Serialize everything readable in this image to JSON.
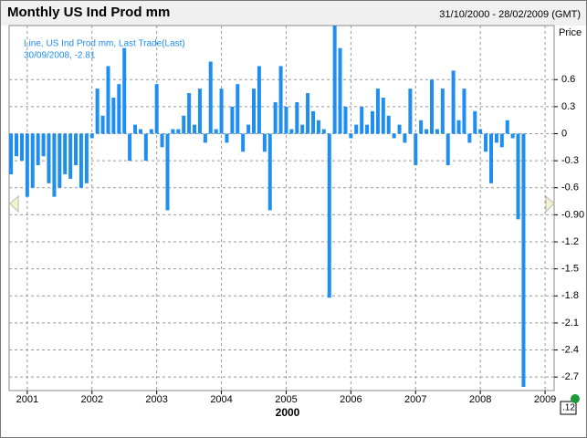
{
  "chart_data": {
    "type": "bar",
    "title": "Monthly US Ind Prod mm",
    "subtitle": "31/10/2000 - 28/02/2009 (GMT)",
    "y_axis_label": "Price",
    "x_axis_label": "2000",
    "legend_text": "Line, US Ind Prod mm, Last Trade(Last)",
    "annotation": "30/09/2008, -2.81",
    "price_tag": ".12",
    "series": [
      {
        "name": "US Ind Prod mm",
        "color": "#1f8ef1",
        "x": [
          2000.75,
          2000.833,
          2000.917,
          2001,
          2001.083,
          2001.167,
          2001.25,
          2001.333,
          2001.417,
          2001.5,
          2001.583,
          2001.667,
          2001.75,
          2001.833,
          2001.917,
          2002,
          2002.083,
          2002.167,
          2002.25,
          2002.333,
          2002.417,
          2002.5,
          2002.583,
          2002.667,
          2002.75,
          2002.833,
          2002.917,
          2003,
          2003.083,
          2003.167,
          2003.25,
          2003.333,
          2003.417,
          2003.5,
          2003.583,
          2003.667,
          2003.75,
          2003.833,
          2003.917,
          2004,
          2004.083,
          2004.167,
          2004.25,
          2004.333,
          2004.417,
          2004.5,
          2004.583,
          2004.667,
          2004.75,
          2004.833,
          2004.917,
          2005,
          2005.083,
          2005.167,
          2005.25,
          2005.333,
          2005.417,
          2005.5,
          2005.583,
          2005.667,
          2005.75,
          2005.833,
          2005.917,
          2006,
          2006.083,
          2006.167,
          2006.25,
          2006.333,
          2006.417,
          2006.5,
          2006.583,
          2006.667,
          2006.75,
          2006.833,
          2006.917,
          2007,
          2007.083,
          2007.167,
          2007.25,
          2007.333,
          2007.417,
          2007.5,
          2007.583,
          2007.667,
          2007.75,
          2007.833,
          2007.917,
          2008,
          2008.083,
          2008.167,
          2008.25,
          2008.333,
          2008.417,
          2008.5,
          2008.583,
          2008.667
        ],
        "values": [
          -0.45,
          -0.25,
          -0.3,
          -0.7,
          -0.6,
          -0.35,
          -0.25,
          -0.55,
          -0.7,
          -0.6,
          -0.45,
          -0.5,
          -0.35,
          -0.6,
          -0.55,
          -0.05,
          0.5,
          0.2,
          0.75,
          0.4,
          0.55,
          0.95,
          -0.3,
          0.1,
          0.05,
          -0.3,
          0.05,
          0.55,
          -0.15,
          -0.85,
          0.05,
          0.05,
          0.2,
          0.45,
          0.1,
          0.5,
          -0.1,
          0.8,
          0.05,
          0.5,
          -0.1,
          0.3,
          0.55,
          -0.2,
          0.1,
          0.5,
          0.75,
          -0.2,
          -0.85,
          0.35,
          0.75,
          0.3,
          0.05,
          0.35,
          0.1,
          0.45,
          0.25,
          0.15,
          0.05,
          -1.82,
          1.2,
          0.95,
          0.3,
          -0.05,
          0.1,
          0.3,
          0.1,
          0.25,
          0.5,
          0.4,
          0.2,
          -0.05,
          0.1,
          -0.1,
          0.5,
          -0.35,
          0.15,
          0.05,
          0.6,
          0.05,
          0.5,
          -0.35,
          0.7,
          0.15,
          0.5,
          -0.1,
          0.25,
          0.05,
          -0.2,
          -0.55,
          -0.1,
          -0.15,
          0.15,
          -0.05,
          -0.95,
          -2.81
        ]
      }
    ],
    "xlim": [
      2000.72,
      2009.14
    ],
    "xticks": [
      2001,
      2002,
      2003,
      2004,
      2005,
      2006,
      2007,
      2008,
      2009
    ],
    "ylim": [
      -2.85,
      1.2
    ],
    "yticks": [
      0.6,
      0.3,
      0,
      -0.3,
      -0.6,
      {
        "value": -0.9,
        "label": "-0.90"
      },
      -1.2,
      -1.5,
      -1.8,
      -2.1,
      -2.4,
      -2.7
    ],
    "grid": true
  }
}
